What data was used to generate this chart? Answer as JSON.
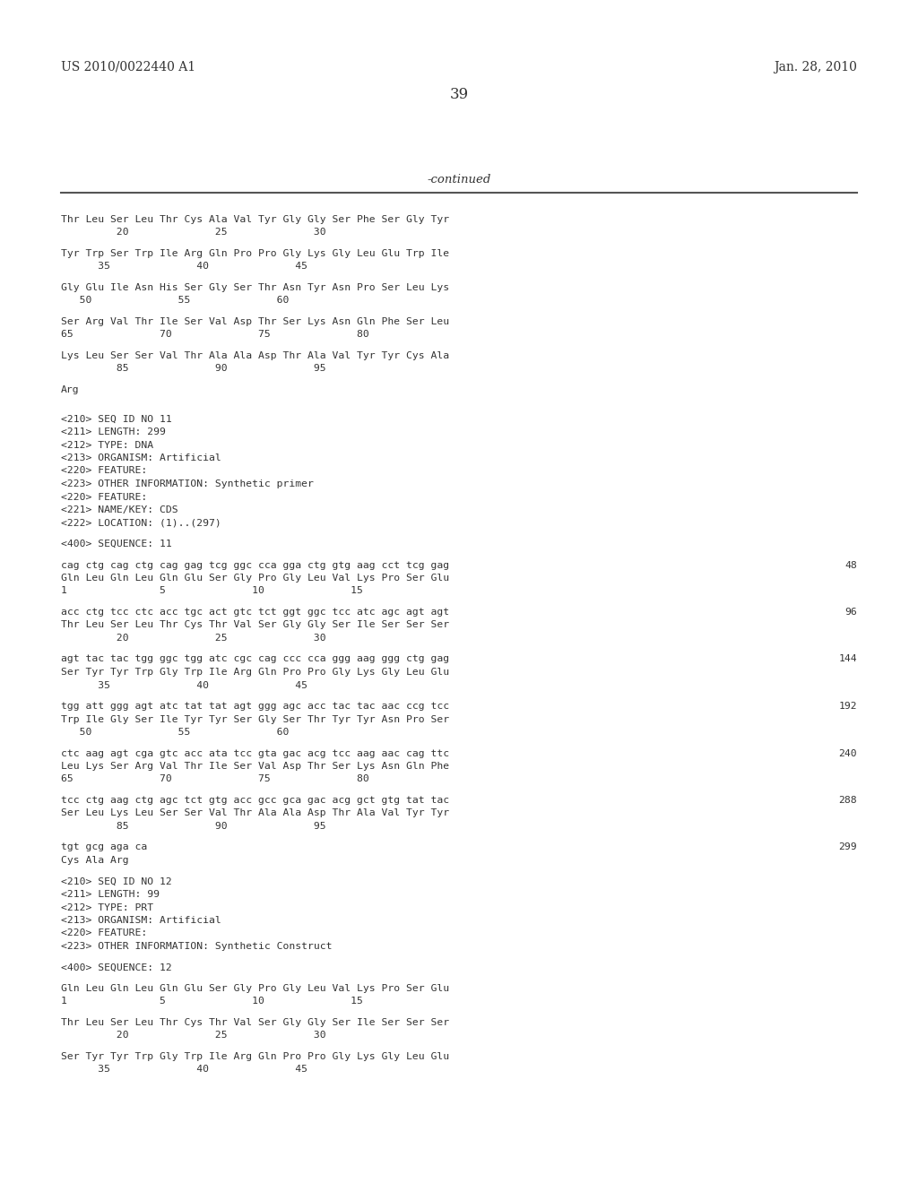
{
  "bg_color": "#ffffff",
  "header_left": "US 2010/0022440 A1",
  "header_right": "Jan. 28, 2010",
  "page_number": "39",
  "continued_label": "-continued",
  "text_color": "#333333",
  "header_fontsize": 10,
  "page_fontsize": 12,
  "mono_fontsize": 8.2,
  "content": [
    {
      "type": "mono",
      "text": "Thr Leu Ser Leu Thr Cys Ala Val Tyr Gly Gly Ser Phe Ser Gly Tyr"
    },
    {
      "type": "mono",
      "text": "         20              25              30"
    },
    {
      "type": "blank"
    },
    {
      "type": "mono",
      "text": "Tyr Trp Ser Trp Ile Arg Gln Pro Pro Gly Lys Gly Leu Glu Trp Ile"
    },
    {
      "type": "mono",
      "text": "      35              40              45"
    },
    {
      "type": "blank"
    },
    {
      "type": "mono",
      "text": "Gly Glu Ile Asn His Ser Gly Ser Thr Asn Tyr Asn Pro Ser Leu Lys"
    },
    {
      "type": "mono",
      "text": "   50              55              60"
    },
    {
      "type": "blank"
    },
    {
      "type": "mono",
      "text": "Ser Arg Val Thr Ile Ser Val Asp Thr Ser Lys Asn Gln Phe Ser Leu"
    },
    {
      "type": "mono",
      "text": "65              70              75              80"
    },
    {
      "type": "blank"
    },
    {
      "type": "mono",
      "text": "Lys Leu Ser Ser Val Thr Ala Ala Asp Thr Ala Val Tyr Tyr Cys Ala"
    },
    {
      "type": "mono",
      "text": "         85              90              95"
    },
    {
      "type": "blank"
    },
    {
      "type": "mono",
      "text": "Arg"
    },
    {
      "type": "blank"
    },
    {
      "type": "blank"
    },
    {
      "type": "mono",
      "text": "<210> SEQ ID NO 11"
    },
    {
      "type": "mono",
      "text": "<211> LENGTH: 299"
    },
    {
      "type": "mono",
      "text": "<212> TYPE: DNA"
    },
    {
      "type": "mono",
      "text": "<213> ORGANISM: Artificial"
    },
    {
      "type": "mono",
      "text": "<220> FEATURE:"
    },
    {
      "type": "mono",
      "text": "<223> OTHER INFORMATION: Synthetic primer"
    },
    {
      "type": "mono",
      "text": "<220> FEATURE:"
    },
    {
      "type": "mono",
      "text": "<221> NAME/KEY: CDS"
    },
    {
      "type": "mono",
      "text": "<222> LOCATION: (1)..(297)"
    },
    {
      "type": "blank"
    },
    {
      "type": "mono",
      "text": "<400> SEQUENCE: 11"
    },
    {
      "type": "blank"
    },
    {
      "type": "mono_num",
      "text": "cag ctg cag ctg cag gag tcg ggc cca gga ctg gtg aag cct tcg gag",
      "num": "48"
    },
    {
      "type": "mono",
      "text": "Gln Leu Gln Leu Gln Glu Ser Gly Pro Gly Leu Val Lys Pro Ser Glu"
    },
    {
      "type": "mono",
      "text": "1               5              10              15"
    },
    {
      "type": "blank"
    },
    {
      "type": "mono_num",
      "text": "acc ctg tcc ctc acc tgc act gtc tct ggt ggc tcc atc agc agt agt",
      "num": "96"
    },
    {
      "type": "mono",
      "text": "Thr Leu Ser Leu Thr Cys Thr Val Ser Gly Gly Ser Ile Ser Ser Ser"
    },
    {
      "type": "mono",
      "text": "         20              25              30"
    },
    {
      "type": "blank"
    },
    {
      "type": "mono_num",
      "text": "agt tac tac tgg ggc tgg atc cgc cag ccc cca ggg aag ggg ctg gag",
      "num": "144"
    },
    {
      "type": "mono",
      "text": "Ser Tyr Tyr Trp Gly Trp Ile Arg Gln Pro Pro Gly Lys Gly Leu Glu"
    },
    {
      "type": "mono",
      "text": "      35              40              45"
    },
    {
      "type": "blank"
    },
    {
      "type": "mono_num",
      "text": "tgg att ggg agt atc tat tat agt ggg agc acc tac tac aac ccg tcc",
      "num": "192"
    },
    {
      "type": "mono",
      "text": "Trp Ile Gly Ser Ile Tyr Tyr Ser Gly Ser Thr Tyr Tyr Asn Pro Ser"
    },
    {
      "type": "mono",
      "text": "   50              55              60"
    },
    {
      "type": "blank"
    },
    {
      "type": "mono_num",
      "text": "ctc aag agt cga gtc acc ata tcc gta gac acg tcc aag aac cag ttc",
      "num": "240"
    },
    {
      "type": "mono",
      "text": "Leu Lys Ser Arg Val Thr Ile Ser Val Asp Thr Ser Lys Asn Gln Phe"
    },
    {
      "type": "mono",
      "text": "65              70              75              80"
    },
    {
      "type": "blank"
    },
    {
      "type": "mono_num",
      "text": "tcc ctg aag ctg agc tct gtg acc gcc gca gac acg gct gtg tat tac",
      "num": "288"
    },
    {
      "type": "mono",
      "text": "Ser Leu Lys Leu Ser Ser Val Thr Ala Ala Asp Thr Ala Val Tyr Tyr"
    },
    {
      "type": "mono",
      "text": "         85              90              95"
    },
    {
      "type": "blank"
    },
    {
      "type": "mono_num",
      "text": "tgt gcg aga ca",
      "num": "299"
    },
    {
      "type": "mono",
      "text": "Cys Ala Arg"
    },
    {
      "type": "blank"
    },
    {
      "type": "mono",
      "text": "<210> SEQ ID NO 12"
    },
    {
      "type": "mono",
      "text": "<211> LENGTH: 99"
    },
    {
      "type": "mono",
      "text": "<212> TYPE: PRT"
    },
    {
      "type": "mono",
      "text": "<213> ORGANISM: Artificial"
    },
    {
      "type": "mono",
      "text": "<220> FEATURE:"
    },
    {
      "type": "mono",
      "text": "<223> OTHER INFORMATION: Synthetic Construct"
    },
    {
      "type": "blank"
    },
    {
      "type": "mono",
      "text": "<400> SEQUENCE: 12"
    },
    {
      "type": "blank"
    },
    {
      "type": "mono",
      "text": "Gln Leu Gln Leu Gln Glu Ser Gly Pro Gly Leu Val Lys Pro Ser Glu"
    },
    {
      "type": "mono",
      "text": "1               5              10              15"
    },
    {
      "type": "blank"
    },
    {
      "type": "mono",
      "text": "Thr Leu Ser Leu Thr Cys Thr Val Ser Gly Gly Ser Ile Ser Ser Ser"
    },
    {
      "type": "mono",
      "text": "         20              25              30"
    },
    {
      "type": "blank"
    },
    {
      "type": "mono",
      "text": "Ser Tyr Tyr Trp Gly Trp Ile Arg Gln Pro Pro Gly Lys Gly Leu Glu"
    },
    {
      "type": "mono",
      "text": "      35              40              45"
    }
  ]
}
